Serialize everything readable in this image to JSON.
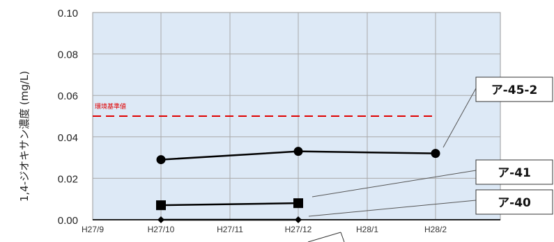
{
  "chart_data": {
    "type": "line",
    "ylabel": "1,4-ジオキサン濃度 (mg/L)",
    "ylim": [
      0,
      0.1
    ],
    "yticks": [
      0.0,
      0.02,
      0.04,
      0.06,
      0.08,
      0.1
    ],
    "ytick_labels": [
      "0.00",
      "0.02",
      "0.04",
      "0.06",
      "0.08",
      "0.10"
    ],
    "categories": [
      "H27/9",
      "H27/10",
      "H27/11",
      "H27/12",
      "H28/1",
      "H28/2"
    ],
    "grid": true,
    "background": "#dde9f6",
    "reference_line": {
      "label": "環境基準値",
      "value": 0.05,
      "color": "#e00000",
      "from": "H27/9",
      "to": "H28/2"
    },
    "series": [
      {
        "name": "ア-45-2",
        "marker": "circle",
        "points": [
          {
            "x": "H27/10",
            "y": 0.029
          },
          {
            "x": "H27/12",
            "y": 0.033
          },
          {
            "x": "H28/2",
            "y": 0.032
          }
        ]
      },
      {
        "name": "ア-41",
        "marker": "square",
        "points": [
          {
            "x": "H27/10",
            "y": 0.007
          },
          {
            "x": "H27/12",
            "y": 0.008
          }
        ]
      },
      {
        "name": "ア-40",
        "marker": "diamond",
        "points": [
          {
            "x": "H27/10",
            "y": 0.0
          },
          {
            "x": "H27/12",
            "y": 0.0
          }
        ]
      }
    ]
  }
}
